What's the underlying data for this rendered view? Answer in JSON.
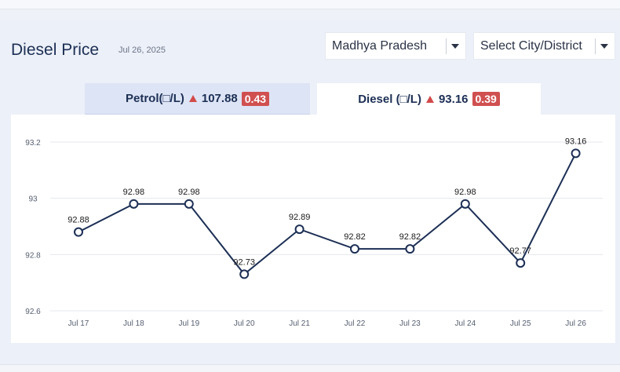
{
  "header": {
    "title": "Diesel Price",
    "date": "Jul 26, 2025"
  },
  "filters": {
    "state": "Madhya Pradesh",
    "city": "Select City/District"
  },
  "tabs": [
    {
      "label": "Petrol(□/L)",
      "price": "107.88",
      "change": "0.43",
      "direction": "up",
      "active": false
    },
    {
      "label": "Diesel (□/L)",
      "price": "93.16",
      "change": "0.39",
      "direction": "up",
      "active": true
    }
  ],
  "colors": {
    "line": "#1c2f55",
    "badge": "#d05050",
    "up_arrow": "#d24a4a",
    "active_tab": "#ffffff",
    "inactive_tab": "#dde4f5"
  },
  "chart_data": {
    "type": "line",
    "categories": [
      "Jul 17",
      "Jul 18",
      "Jul 19",
      "Jul 20",
      "Jul 21",
      "Jul 22",
      "Jul 23",
      "Jul 24",
      "Jul 25",
      "Jul 26"
    ],
    "series": [
      {
        "values": [
          92.88,
          92.98,
          92.98,
          92.73,
          92.89,
          92.82,
          92.82,
          92.98,
          92.77,
          93.16
        ]
      }
    ],
    "data_labels": [
      "92.88",
      "92.98",
      "92.98",
      "92.73",
      "92.89",
      "92.82",
      "92.82",
      "92.98",
      "92.77",
      "93.16"
    ],
    "y_ticks": [
      93.2,
      93,
      92.8,
      92.6
    ],
    "y_tick_labels": [
      "93.2",
      "93",
      "92.8",
      "92.6"
    ],
    "ylim": [
      92.6,
      93.2
    ],
    "grid": true,
    "title": "",
    "xlabel": "",
    "ylabel": ""
  }
}
